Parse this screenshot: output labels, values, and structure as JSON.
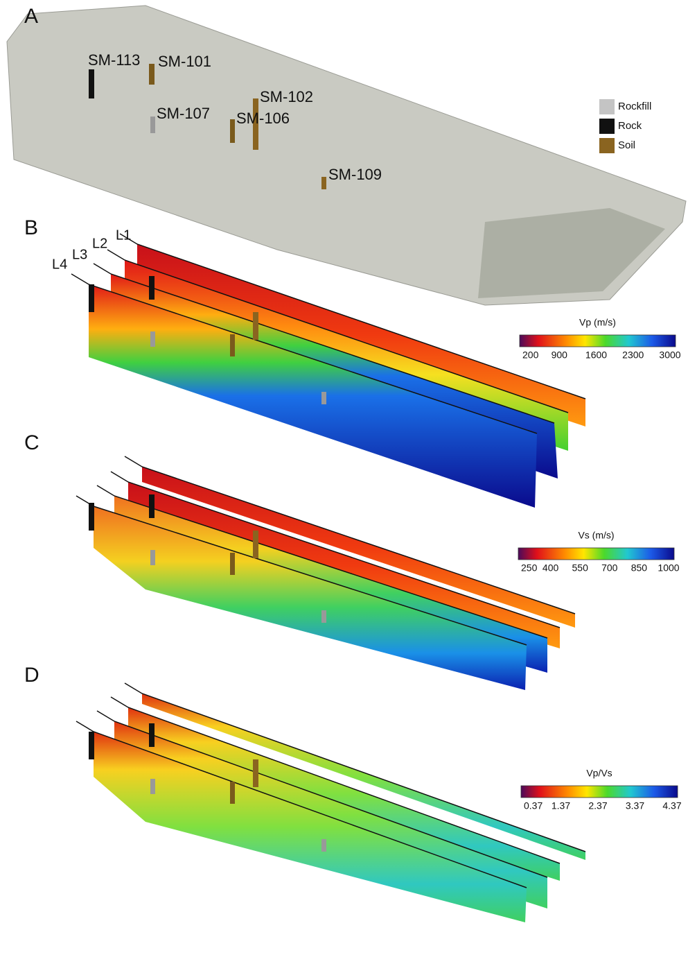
{
  "panels": [
    {
      "label": "A",
      "boreholes": [
        "SM-113",
        "SM-101",
        "SM-107",
        "SM-106",
        "SM-102",
        "SM-109"
      ],
      "legend": [
        "Rockfill",
        "Rock",
        "Soil"
      ]
    },
    {
      "label": "B",
      "lines": [
        "L1",
        "L2",
        "L3",
        "L4"
      ],
      "colorbar": {
        "title": "Vp (m/s)",
        "ticks": [
          200,
          900,
          1600,
          2300,
          3000
        ]
      }
    },
    {
      "label": "C",
      "colorbar": {
        "title": "Vs (m/s)",
        "ticks": [
          250,
          400,
          550,
          700,
          850,
          1000
        ]
      }
    },
    {
      "label": "D",
      "colorbar": {
        "title": "Vp/Vs",
        "ticks": [
          0.37,
          1.37,
          2.37,
          3.37,
          4.37
        ]
      }
    }
  ]
}
